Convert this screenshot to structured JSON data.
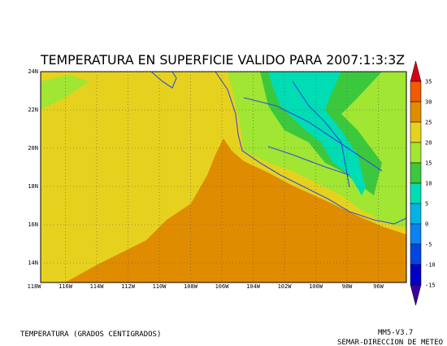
{
  "title": "TEMPERATURA EN SUPERFICIE VALIDO PARA 2007:1:3:3Z",
  "map": {
    "lat_labels": [
      "24N",
      "22N",
      "20N",
      "18N",
      "16N",
      "14N"
    ],
    "lon_labels": [
      "118W",
      "116W",
      "114W",
      "112W",
      "110W",
      "108W",
      "106W",
      "104W",
      "102W",
      "100W",
      "98W",
      "96W"
    ]
  },
  "colorbar": {
    "labels": [
      35,
      30,
      25,
      20,
      15,
      10,
      5,
      0,
      -5,
      -10,
      -15
    ],
    "colors": [
      "#d80018",
      "#f05a00",
      "#e08c00",
      "#e6d21e",
      "#a0e632",
      "#3cc83c",
      "#00dcb4",
      "#00b4e6",
      "#0a82f0",
      "#0046e0",
      "#0000c8",
      "#3a00a0"
    ]
  },
  "footer": {
    "left": "TEMPERATURA (GRADOS CENTIGRADOS)",
    "right_top": "MM5-V3.7",
    "right_bottom": "SEMAR-DIRECCION DE METEO"
  }
}
